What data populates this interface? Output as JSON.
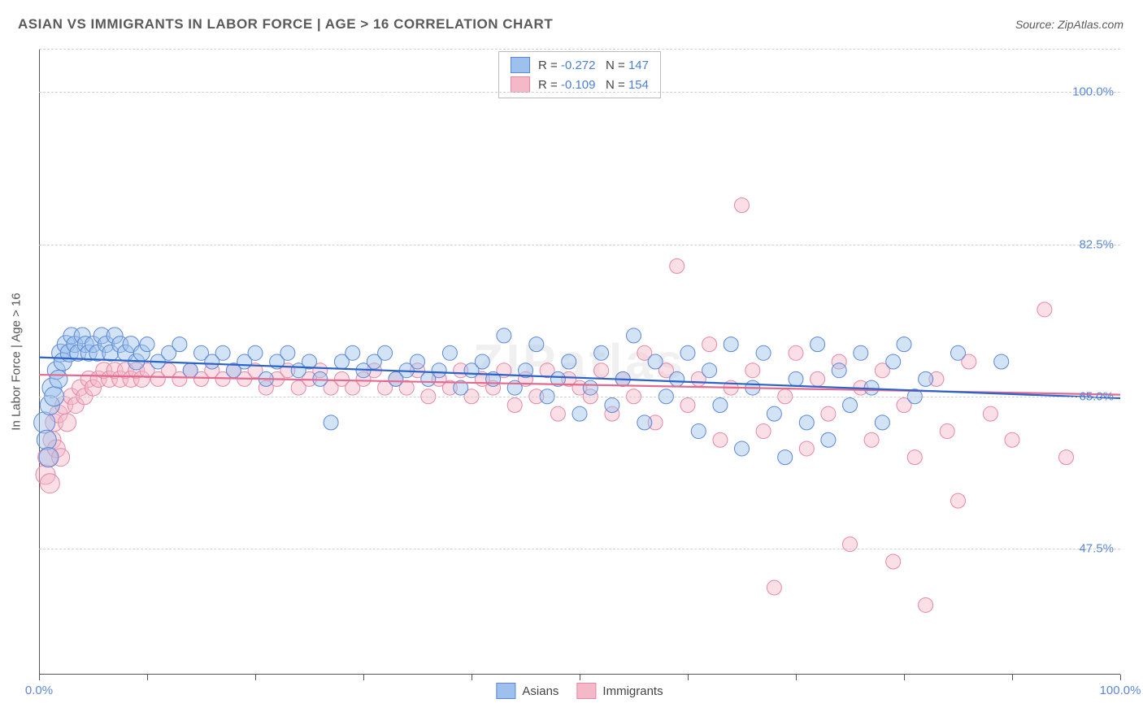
{
  "title": "ASIAN VS IMMIGRANTS IN LABOR FORCE | AGE > 16 CORRELATION CHART",
  "source": "Source: ZipAtlas.com",
  "watermark": "ZIPatlas",
  "chart": {
    "type": "scatter",
    "y_axis_title": "In Labor Force | Age > 16",
    "background_color": "#ffffff",
    "grid_color": "#d0d0d0",
    "axis_color": "#555555",
    "text_color": "#5a5a5a",
    "tick_label_color": "#5b87d6",
    "xlim": [
      0,
      100
    ],
    "ylim": [
      33,
      105
    ],
    "y_ticks": [
      {
        "v": 47.5,
        "label": "47.5%"
      },
      {
        "v": 65.0,
        "label": "65.0%"
      },
      {
        "v": 82.5,
        "label": "82.5%"
      },
      {
        "v": 100.0,
        "label": "100.0%"
      }
    ],
    "x_ticks_unlabeled_step": 10,
    "x_labels": [
      {
        "v": 0,
        "label": "0.0%"
      },
      {
        "v": 100,
        "label": "100.0%"
      }
    ],
    "marker_radius": 9,
    "marker_radius_large": 12,
    "marker_fill_opacity": 0.45,
    "line_width": 2.2,
    "series": {
      "asians": {
        "label": "Asians",
        "fill": "#9dc1ec",
        "stroke": "#5b87d6",
        "trend_color": "#2b63c9",
        "r_value": "-0.272",
        "n_value": "147",
        "trend": {
          "x1": 0,
          "y1": 69.5,
          "x2": 100,
          "y2": 64.8
        },
        "points": [
          [
            0.5,
            62,
            13
          ],
          [
            0.7,
            60,
            12
          ],
          [
            0.9,
            58,
            12
          ],
          [
            1.0,
            64,
            12
          ],
          [
            1.2,
            66,
            12
          ],
          [
            1.4,
            65,
            12
          ],
          [
            1.6,
            68,
            11
          ],
          [
            1.8,
            67,
            11
          ],
          [
            2.0,
            70,
            11
          ],
          [
            2.2,
            69,
            11
          ],
          [
            2.5,
            71,
            11
          ],
          [
            2.8,
            70,
            11
          ],
          [
            3.0,
            72,
            10
          ],
          [
            3.3,
            71,
            10
          ],
          [
            3.6,
            70,
            10
          ],
          [
            4.0,
            72,
            10
          ],
          [
            4.3,
            71,
            10
          ],
          [
            4.6,
            70,
            10
          ],
          [
            5.0,
            71,
            10
          ],
          [
            5.4,
            70,
            10
          ],
          [
            5.8,
            72,
            10
          ],
          [
            6.2,
            71,
            10
          ],
          [
            6.6,
            70,
            10
          ],
          [
            7.0,
            72,
            10
          ],
          [
            7.5,
            71,
            10
          ],
          [
            8.0,
            70,
            10
          ],
          [
            8.5,
            71,
            10
          ],
          [
            9.0,
            69,
            10
          ],
          [
            9.5,
            70,
            10
          ],
          [
            10,
            71,
            9
          ],
          [
            11,
            69,
            9
          ],
          [
            12,
            70,
            9
          ],
          [
            13,
            71,
            9
          ],
          [
            14,
            68,
            9
          ],
          [
            15,
            70,
            9
          ],
          [
            16,
            69,
            9
          ],
          [
            17,
            70,
            9
          ],
          [
            18,
            68,
            9
          ],
          [
            19,
            69,
            9
          ],
          [
            20,
            70,
            9
          ],
          [
            21,
            67,
            9
          ],
          [
            22,
            69,
            9
          ],
          [
            23,
            70,
            9
          ],
          [
            24,
            68,
            9
          ],
          [
            25,
            69,
            9
          ],
          [
            26,
            67,
            9
          ],
          [
            27,
            62,
            9
          ],
          [
            28,
            69,
            9
          ],
          [
            29,
            70,
            9
          ],
          [
            30,
            68,
            9
          ],
          [
            31,
            69,
            9
          ],
          [
            32,
            70,
            9
          ],
          [
            33,
            67,
            9
          ],
          [
            34,
            68,
            9
          ],
          [
            35,
            69,
            9
          ],
          [
            36,
            67,
            9
          ],
          [
            37,
            68,
            9
          ],
          [
            38,
            70,
            9
          ],
          [
            39,
            66,
            9
          ],
          [
            40,
            68,
            9
          ],
          [
            41,
            69,
            9
          ],
          [
            42,
            67,
            9
          ],
          [
            43,
            72,
            9
          ],
          [
            44,
            66,
            9
          ],
          [
            45,
            68,
            9
          ],
          [
            46,
            71,
            9
          ],
          [
            47,
            65,
            9
          ],
          [
            48,
            67,
            9
          ],
          [
            49,
            69,
            9
          ],
          [
            50,
            63,
            9
          ],
          [
            51,
            66,
            9
          ],
          [
            52,
            70,
            9
          ],
          [
            53,
            64,
            9
          ],
          [
            54,
            67,
            9
          ],
          [
            55,
            72,
            9
          ],
          [
            56,
            62,
            9
          ],
          [
            57,
            69,
            9
          ],
          [
            58,
            65,
            9
          ],
          [
            59,
            67,
            9
          ],
          [
            60,
            70,
            9
          ],
          [
            61,
            61,
            9
          ],
          [
            62,
            68,
            9
          ],
          [
            63,
            64,
            9
          ],
          [
            64,
            71,
            9
          ],
          [
            65,
            59,
            9
          ],
          [
            66,
            66,
            9
          ],
          [
            67,
            70,
            9
          ],
          [
            68,
            63,
            9
          ],
          [
            69,
            58,
            9
          ],
          [
            70,
            67,
            9
          ],
          [
            71,
            62,
            9
          ],
          [
            72,
            71,
            9
          ],
          [
            73,
            60,
            9
          ],
          [
            74,
            68,
            9
          ],
          [
            75,
            64,
            9
          ],
          [
            76,
            70,
            9
          ],
          [
            77,
            66,
            9
          ],
          [
            78,
            62,
            9
          ],
          [
            79,
            69,
            9
          ],
          [
            80,
            71,
            9
          ],
          [
            81,
            65,
            9
          ],
          [
            82,
            67,
            9
          ],
          [
            85,
            70,
            9
          ],
          [
            89,
            69,
            9
          ]
        ]
      },
      "immigrants": {
        "label": "Immigrants",
        "fill": "#f5b8c9",
        "stroke": "#e687a3",
        "trend_color": "#e46a8f",
        "r_value": "-0.109",
        "n_value": "154",
        "trend": {
          "x1": 0,
          "y1": 67.5,
          "x2": 100,
          "y2": 65.2
        },
        "points": [
          [
            0.6,
            56,
            12
          ],
          [
            0.8,
            58,
            12
          ],
          [
            1.0,
            55,
            12
          ],
          [
            1.2,
            60,
            11
          ],
          [
            1.4,
            62,
            11
          ],
          [
            1.6,
            59,
            11
          ],
          [
            1.8,
            63,
            11
          ],
          [
            2.0,
            58,
            11
          ],
          [
            2.3,
            64,
            11
          ],
          [
            2.6,
            62,
            11
          ],
          [
            3.0,
            65,
            10
          ],
          [
            3.4,
            64,
            10
          ],
          [
            3.8,
            66,
            10
          ],
          [
            4.2,
            65,
            10
          ],
          [
            4.6,
            67,
            10
          ],
          [
            5.0,
            66,
            10
          ],
          [
            5.5,
            67,
            10
          ],
          [
            6.0,
            68,
            10
          ],
          [
            6.5,
            67,
            10
          ],
          [
            7.0,
            68,
            10
          ],
          [
            7.5,
            67,
            10
          ],
          [
            8.0,
            68,
            10
          ],
          [
            8.5,
            67,
            10
          ],
          [
            9.0,
            68,
            10
          ],
          [
            9.5,
            67,
            10
          ],
          [
            10,
            68,
            9
          ],
          [
            11,
            67,
            9
          ],
          [
            12,
            68,
            9
          ],
          [
            13,
            67,
            9
          ],
          [
            14,
            68,
            9
          ],
          [
            15,
            67,
            9
          ],
          [
            16,
            68,
            9
          ],
          [
            17,
            67,
            9
          ],
          [
            18,
            68,
            9
          ],
          [
            19,
            67,
            9
          ],
          [
            20,
            68,
            9
          ],
          [
            21,
            66,
            9
          ],
          [
            22,
            67,
            9
          ],
          [
            23,
            68,
            9
          ],
          [
            24,
            66,
            9
          ],
          [
            25,
            67,
            9
          ],
          [
            26,
            68,
            9
          ],
          [
            27,
            66,
            9
          ],
          [
            28,
            67,
            9
          ],
          [
            29,
            66,
            9
          ],
          [
            30,
            67,
            9
          ],
          [
            31,
            68,
            9
          ],
          [
            32,
            66,
            9
          ],
          [
            33,
            67,
            9
          ],
          [
            34,
            66,
            9
          ],
          [
            35,
            68,
            9
          ],
          [
            36,
            65,
            9
          ],
          [
            37,
            67,
            9
          ],
          [
            38,
            66,
            9
          ],
          [
            39,
            68,
            9
          ],
          [
            40,
            65,
            9
          ],
          [
            41,
            67,
            9
          ],
          [
            42,
            66,
            9
          ],
          [
            43,
            68,
            9
          ],
          [
            44,
            64,
            9
          ],
          [
            45,
            67,
            9
          ],
          [
            46,
            65,
            9
          ],
          [
            47,
            68,
            9
          ],
          [
            48,
            63,
            9
          ],
          [
            49,
            67,
            9
          ],
          [
            50,
            66,
            9
          ],
          [
            51,
            65,
            9
          ],
          [
            52,
            68,
            9
          ],
          [
            53,
            63,
            9
          ],
          [
            54,
            67,
            9
          ],
          [
            55,
            65,
            9
          ],
          [
            56,
            70,
            9
          ],
          [
            57,
            62,
            9
          ],
          [
            58,
            68,
            9
          ],
          [
            59,
            80,
            9
          ],
          [
            60,
            64,
            9
          ],
          [
            61,
            67,
            9
          ],
          [
            62,
            71,
            9
          ],
          [
            63,
            60,
            9
          ],
          [
            64,
            66,
            9
          ],
          [
            65,
            87,
            9
          ],
          [
            66,
            68,
            9
          ],
          [
            67,
            61,
            9
          ],
          [
            68,
            43,
            9
          ],
          [
            69,
            65,
            9
          ],
          [
            70,
            70,
            9
          ],
          [
            71,
            59,
            9
          ],
          [
            72,
            67,
            9
          ],
          [
            73,
            63,
            9
          ],
          [
            74,
            69,
            9
          ],
          [
            75,
            48,
            9
          ],
          [
            76,
            66,
            9
          ],
          [
            77,
            60,
            9
          ],
          [
            78,
            68,
            9
          ],
          [
            79,
            46,
            9
          ],
          [
            80,
            64,
            9
          ],
          [
            81,
            58,
            9
          ],
          [
            82,
            41,
            9
          ],
          [
            83,
            67,
            9
          ],
          [
            84,
            61,
            9
          ],
          [
            85,
            53,
            9
          ],
          [
            86,
            69,
            9
          ],
          [
            88,
            63,
            9
          ],
          [
            90,
            60,
            9
          ],
          [
            93,
            75,
            9
          ],
          [
            95,
            58,
            9
          ]
        ]
      }
    }
  }
}
